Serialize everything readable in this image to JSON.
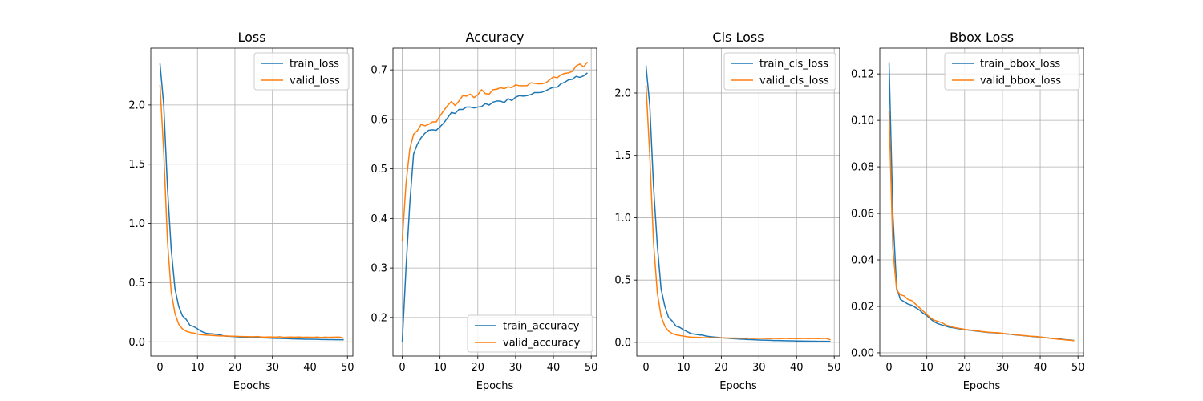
{
  "chart_data": [
    {
      "type": "line",
      "title": "Loss",
      "xlabel": "Epochs",
      "ylabel": "",
      "xlim": [
        -2.45,
        51.45
      ],
      "ylim": [
        -0.12,
        2.48
      ],
      "xticks": [
        0,
        10,
        20,
        30,
        40,
        50
      ],
      "xtick_labels": [
        "0",
        "10",
        "20",
        "30",
        "40",
        "50"
      ],
      "yticks": [
        0.0,
        0.5,
        1.0,
        1.5,
        2.0
      ],
      "ytick_labels": [
        "0.0",
        "0.5",
        "1.0",
        "1.5",
        "2.0"
      ],
      "grid": true,
      "legend_position": "upper-right",
      "series": [
        {
          "name": "train_loss",
          "values": [
            2.35,
            2.0,
            1.3,
            0.78,
            0.45,
            0.3,
            0.22,
            0.19,
            0.14,
            0.13,
            0.11,
            0.09,
            0.075,
            0.07,
            0.068,
            0.064,
            0.06,
            0.05,
            0.048,
            0.046,
            0.044,
            0.042,
            0.04,
            0.039,
            0.037,
            0.036,
            0.035,
            0.034,
            0.033,
            0.032,
            0.031,
            0.03,
            0.029,
            0.028,
            0.027,
            0.026,
            0.025,
            0.024,
            0.023,
            0.022,
            0.022,
            0.021,
            0.021,
            0.02,
            0.02,
            0.019,
            0.019,
            0.018,
            0.018,
            0.017
          ]
        },
        {
          "name": "valid_loss",
          "values": [
            2.17,
            1.6,
            0.85,
            0.42,
            0.24,
            0.15,
            0.11,
            0.09,
            0.08,
            0.075,
            0.065,
            0.06,
            0.058,
            0.056,
            0.054,
            0.052,
            0.05,
            0.05,
            0.049,
            0.048,
            0.048,
            0.046,
            0.045,
            0.044,
            0.043,
            0.043,
            0.045,
            0.042,
            0.04,
            0.042,
            0.041,
            0.04,
            0.043,
            0.038,
            0.04,
            0.041,
            0.039,
            0.042,
            0.038,
            0.04,
            0.039,
            0.038,
            0.041,
            0.037,
            0.04,
            0.038,
            0.039,
            0.04,
            0.04,
            0.03
          ]
        }
      ]
    },
    {
      "type": "line",
      "title": "Accuracy",
      "xlabel": "Epochs",
      "ylabel": "",
      "xlim": [
        -2.45,
        51.45
      ],
      "ylim": [
        0.122,
        0.744
      ],
      "xticks": [
        0,
        10,
        20,
        30,
        40,
        50
      ],
      "xtick_labels": [
        "0",
        "10",
        "20",
        "30",
        "40",
        "50"
      ],
      "yticks": [
        0.2,
        0.3,
        0.4,
        0.5,
        0.6,
        0.7
      ],
      "ytick_labels": [
        "0.2",
        "0.3",
        "0.4",
        "0.5",
        "0.6",
        "0.7"
      ],
      "grid": true,
      "legend_position": "lower-right",
      "series": [
        {
          "name": "train_accuracy",
          "values": [
            0.15,
            0.3,
            0.43,
            0.53,
            0.55,
            0.563,
            0.572,
            0.578,
            0.579,
            0.578,
            0.585,
            0.593,
            0.603,
            0.614,
            0.612,
            0.62,
            0.62,
            0.625,
            0.625,
            0.623,
            0.625,
            0.626,
            0.632,
            0.629,
            0.635,
            0.637,
            0.637,
            0.634,
            0.642,
            0.638,
            0.645,
            0.648,
            0.647,
            0.648,
            0.65,
            0.654,
            0.654,
            0.655,
            0.658,
            0.662,
            0.665,
            0.665,
            0.672,
            0.675,
            0.68,
            0.681,
            0.687,
            0.685,
            0.688,
            0.694
          ]
        },
        {
          "name": "valid_accuracy",
          "values": [
            0.355,
            0.47,
            0.54,
            0.57,
            0.577,
            0.59,
            0.587,
            0.59,
            0.595,
            0.595,
            0.607,
            0.618,
            0.628,
            0.636,
            0.628,
            0.637,
            0.648,
            0.647,
            0.651,
            0.644,
            0.65,
            0.66,
            0.652,
            0.651,
            0.66,
            0.661,
            0.664,
            0.662,
            0.666,
            0.664,
            0.67,
            0.668,
            0.668,
            0.668,
            0.674,
            0.673,
            0.672,
            0.672,
            0.674,
            0.68,
            0.686,
            0.684,
            0.69,
            0.693,
            0.694,
            0.697,
            0.708,
            0.712,
            0.706,
            0.716
          ]
        }
      ]
    },
    {
      "type": "line",
      "title": "Cls Loss",
      "xlabel": "Epochs",
      "ylabel": "",
      "xlim": [
        -2.45,
        51.45
      ],
      "ylim": [
        -0.11,
        2.36
      ],
      "xticks": [
        0,
        10,
        20,
        30,
        40,
        50
      ],
      "xtick_labels": [
        "0",
        "10",
        "20",
        "30",
        "40",
        "50"
      ],
      "yticks": [
        0.0,
        0.5,
        1.0,
        1.5,
        2.0
      ],
      "ytick_labels": [
        "0.0",
        "0.5",
        "1.0",
        "1.5",
        "2.0"
      ],
      "grid": true,
      "legend_position": "upper-right",
      "series": [
        {
          "name": "train_cls_loss",
          "values": [
            2.22,
            1.9,
            1.25,
            0.78,
            0.43,
            0.29,
            0.2,
            0.17,
            0.13,
            0.12,
            0.1,
            0.085,
            0.07,
            0.065,
            0.06,
            0.058,
            0.05,
            0.046,
            0.043,
            0.04,
            0.037,
            0.035,
            0.032,
            0.03,
            0.028,
            0.026,
            0.025,
            0.023,
            0.022,
            0.02,
            0.019,
            0.018,
            0.017,
            0.016,
            0.015,
            0.015,
            0.014,
            0.013,
            0.012,
            0.012,
            0.011,
            0.011,
            0.01,
            0.01,
            0.009,
            0.009,
            0.008,
            0.008,
            0.008,
            0.007
          ]
        },
        {
          "name": "valid_cls_loss",
          "values": [
            2.06,
            1.5,
            0.8,
            0.4,
            0.21,
            0.13,
            0.09,
            0.07,
            0.06,
            0.055,
            0.05,
            0.045,
            0.042,
            0.04,
            0.04,
            0.038,
            0.037,
            0.037,
            0.036,
            0.036,
            0.036,
            0.035,
            0.035,
            0.034,
            0.034,
            0.033,
            0.033,
            0.034,
            0.032,
            0.031,
            0.033,
            0.032,
            0.031,
            0.03,
            0.032,
            0.031,
            0.03,
            0.032,
            0.03,
            0.031,
            0.031,
            0.03,
            0.032,
            0.03,
            0.031,
            0.031,
            0.03,
            0.032,
            0.031,
            0.02
          ]
        }
      ]
    },
    {
      "type": "line",
      "title": "Bbox Loss",
      "xlabel": "Epochs",
      "ylabel": "",
      "xlim": [
        -2.45,
        51.45
      ],
      "ylim": [
        -0.0014,
        0.1311
      ],
      "xticks": [
        0,
        10,
        20,
        30,
        40,
        50
      ],
      "xtick_labels": [
        "0",
        "10",
        "20",
        "30",
        "40",
        "50"
      ],
      "yticks": [
        0.0,
        0.02,
        0.04,
        0.06,
        0.08,
        0.1,
        0.12
      ],
      "ytick_labels": [
        "0.00",
        "0.02",
        "0.04",
        "0.06",
        "0.08",
        "0.10",
        "0.12"
      ],
      "grid": true,
      "legend_position": "upper-right",
      "series": [
        {
          "name": "train_bbox_loss",
          "values": [
            0.125,
            0.06,
            0.028,
            0.023,
            0.022,
            0.021,
            0.0205,
            0.0195,
            0.0185,
            0.017,
            0.016,
            0.0145,
            0.0133,
            0.0125,
            0.012,
            0.0115,
            0.011,
            0.0108,
            0.0105,
            0.0102,
            0.01,
            0.0098,
            0.0096,
            0.0094,
            0.0092,
            0.009,
            0.0088,
            0.0087,
            0.0086,
            0.0085,
            0.0083,
            0.0081,
            0.008,
            0.0078,
            0.0076,
            0.0075,
            0.0073,
            0.0072,
            0.007,
            0.0069,
            0.0068,
            0.0066,
            0.0064,
            0.0062,
            0.0061,
            0.006,
            0.0058,
            0.0056,
            0.0055,
            0.0053
          ]
        },
        {
          "name": "valid_bbox_loss",
          "values": [
            0.104,
            0.045,
            0.027,
            0.025,
            0.0245,
            0.023,
            0.0225,
            0.021,
            0.0195,
            0.018,
            0.0165,
            0.015,
            0.014,
            0.0135,
            0.013,
            0.012,
            0.0115,
            0.011,
            0.0107,
            0.0104,
            0.0101,
            0.0099,
            0.0097,
            0.0095,
            0.0093,
            0.0091,
            0.0089,
            0.0088,
            0.0087,
            0.0086,
            0.0084,
            0.0082,
            0.008,
            0.0079,
            0.0077,
            0.0075,
            0.0074,
            0.0072,
            0.0071,
            0.007,
            0.0068,
            0.0066,
            0.0064,
            0.0062,
            0.006,
            0.0058,
            0.0057,
            0.0055,
            0.0054,
            0.0052
          ]
        }
      ]
    }
  ],
  "colors": {
    "series_1": "#1f77b4",
    "series_2": "#ff7f0e",
    "grid": "#b0b0b0",
    "axes": "#000000",
    "legend_border": "#cccccc"
  }
}
